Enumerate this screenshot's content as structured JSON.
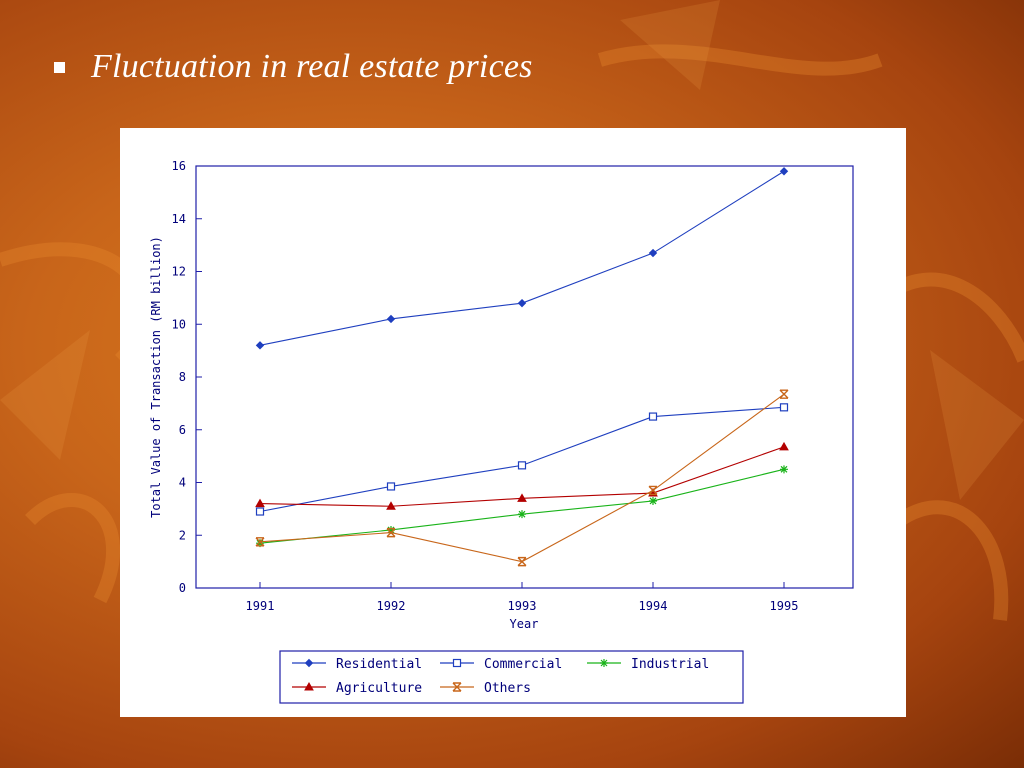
{
  "slide": {
    "bullet_title": "Fluctuation in real estate prices"
  },
  "colors": {
    "residential": "#1f3fbf",
    "commercial": "#1f3fbf",
    "industrial": "#19b319",
    "agriculture": "#b30000",
    "others": "#c8661a",
    "axis": "#1f1fa8",
    "text": "#00007a"
  },
  "chart_data": {
    "type": "line",
    "x": [
      1991,
      1992,
      1993,
      1994,
      1995
    ],
    "xlabel": "Year",
    "ylabel": "Total Value of Transaction (RM billion)",
    "ylim": [
      0,
      16
    ],
    "yticks": [
      0,
      2,
      4,
      6,
      8,
      10,
      12,
      14,
      16
    ],
    "xticks": [
      "1991",
      "1992",
      "1993",
      "1994",
      "1995"
    ],
    "grid": false,
    "legend_position": "bottom",
    "series": [
      {
        "key": "residential",
        "name": "Residential",
        "marker": "diamond",
        "values": [
          9.2,
          10.2,
          10.8,
          12.7,
          15.8
        ]
      },
      {
        "key": "commercial",
        "name": "Commercial",
        "marker": "square",
        "values": [
          2.9,
          3.85,
          4.65,
          6.5,
          6.85
        ]
      },
      {
        "key": "industrial",
        "name": "Industrial",
        "marker": "asterisk",
        "values": [
          1.7,
          2.2,
          2.8,
          3.3,
          4.5
        ]
      },
      {
        "key": "agriculture",
        "name": "Agriculture",
        "marker": "triangle",
        "values": [
          3.2,
          3.1,
          3.4,
          3.6,
          5.35
        ]
      },
      {
        "key": "others",
        "name": "Others",
        "marker": "cross",
        "values": [
          1.75,
          2.1,
          1.0,
          3.7,
          7.35
        ]
      }
    ]
  }
}
